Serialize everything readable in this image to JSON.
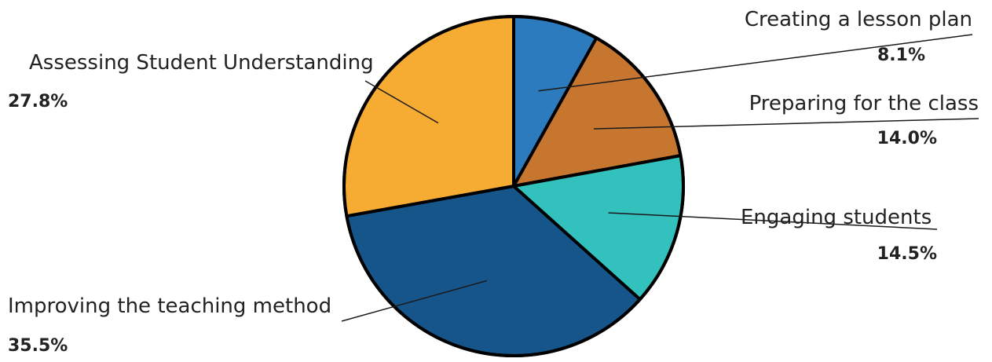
{
  "chart_data": {
    "type": "pie",
    "start_angle_deg": 0,
    "direction": "clockwise",
    "slices": [
      {
        "label": "Creating a lesson plan",
        "value": 8.1,
        "value_label": "8.1%",
        "color": "#2d7bbf",
        "side": "right"
      },
      {
        "label": "Preparing for the class",
        "value": 14.0,
        "value_label": "14.0%",
        "color": "#c77630",
        "side": "right"
      },
      {
        "label": "Engaging students",
        "value": 14.5,
        "value_label": "14.5%",
        "color": "#33c1be",
        "side": "right"
      },
      {
        "label": "Improving the teaching method",
        "value": 35.5,
        "value_label": "35.5%",
        "color": "#16558a",
        "side": "left"
      },
      {
        "label": "Assessing Student Understanding",
        "value": 27.8,
        "value_label": "27.8%",
        "color": "#f6ab32",
        "side": "left"
      }
    ]
  }
}
